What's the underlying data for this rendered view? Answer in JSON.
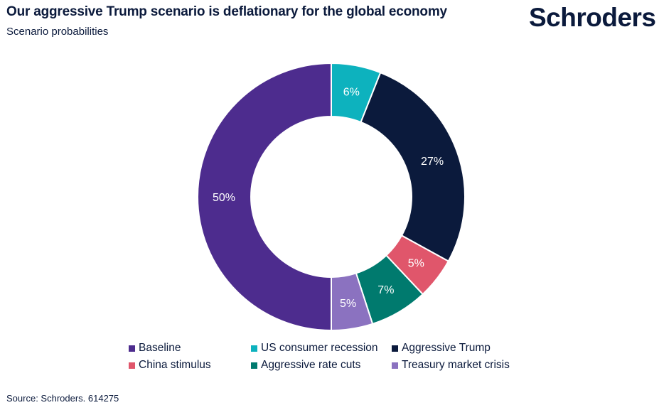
{
  "header": {
    "title": "Our aggressive Trump scenario is deflationary for the global economy",
    "subtitle": "Scenario probabilities",
    "logo_text": "Schroders"
  },
  "chart_data": {
    "type": "pie",
    "variant": "donut",
    "title": "Our aggressive Trump scenario is deflationary for the global economy",
    "subtitle": "Scenario probabilities",
    "unit": "%",
    "start": "12 o'clock, clockwise",
    "slices": [
      {
        "name": "US consumer recession",
        "value": 6,
        "label": "6%",
        "color": "#0db2be"
      },
      {
        "name": "Aggressive Trump",
        "value": 27,
        "label": "27%",
        "color": "#0b1a3c"
      },
      {
        "name": "China stimulus",
        "value": 5,
        "label": "5%",
        "color": "#e0566b"
      },
      {
        "name": "Aggressive rate cuts",
        "value": 7,
        "label": "7%",
        "color": "#007a6e"
      },
      {
        "name": "Treasury market crisis",
        "value": 5,
        "label": "5%",
        "color": "#8b72c0"
      },
      {
        "name": "Baseline",
        "value": 50,
        "label": "50%",
        "color": "#4d2c8e"
      }
    ],
    "legend": [
      {
        "name": "Baseline",
        "color": "#4d2c8e"
      },
      {
        "name": "US consumer recession",
        "color": "#0db2be"
      },
      {
        "name": "Aggressive Trump",
        "color": "#0b1a3c"
      },
      {
        "name": "China stimulus",
        "color": "#e0566b"
      },
      {
        "name": "Aggressive rate cuts",
        "color": "#007a6e"
      },
      {
        "name": "Treasury market crisis",
        "color": "#8b72c0"
      }
    ],
    "legend_position": "bottom"
  },
  "footer": {
    "source": "Source: Schroders. 614275"
  }
}
